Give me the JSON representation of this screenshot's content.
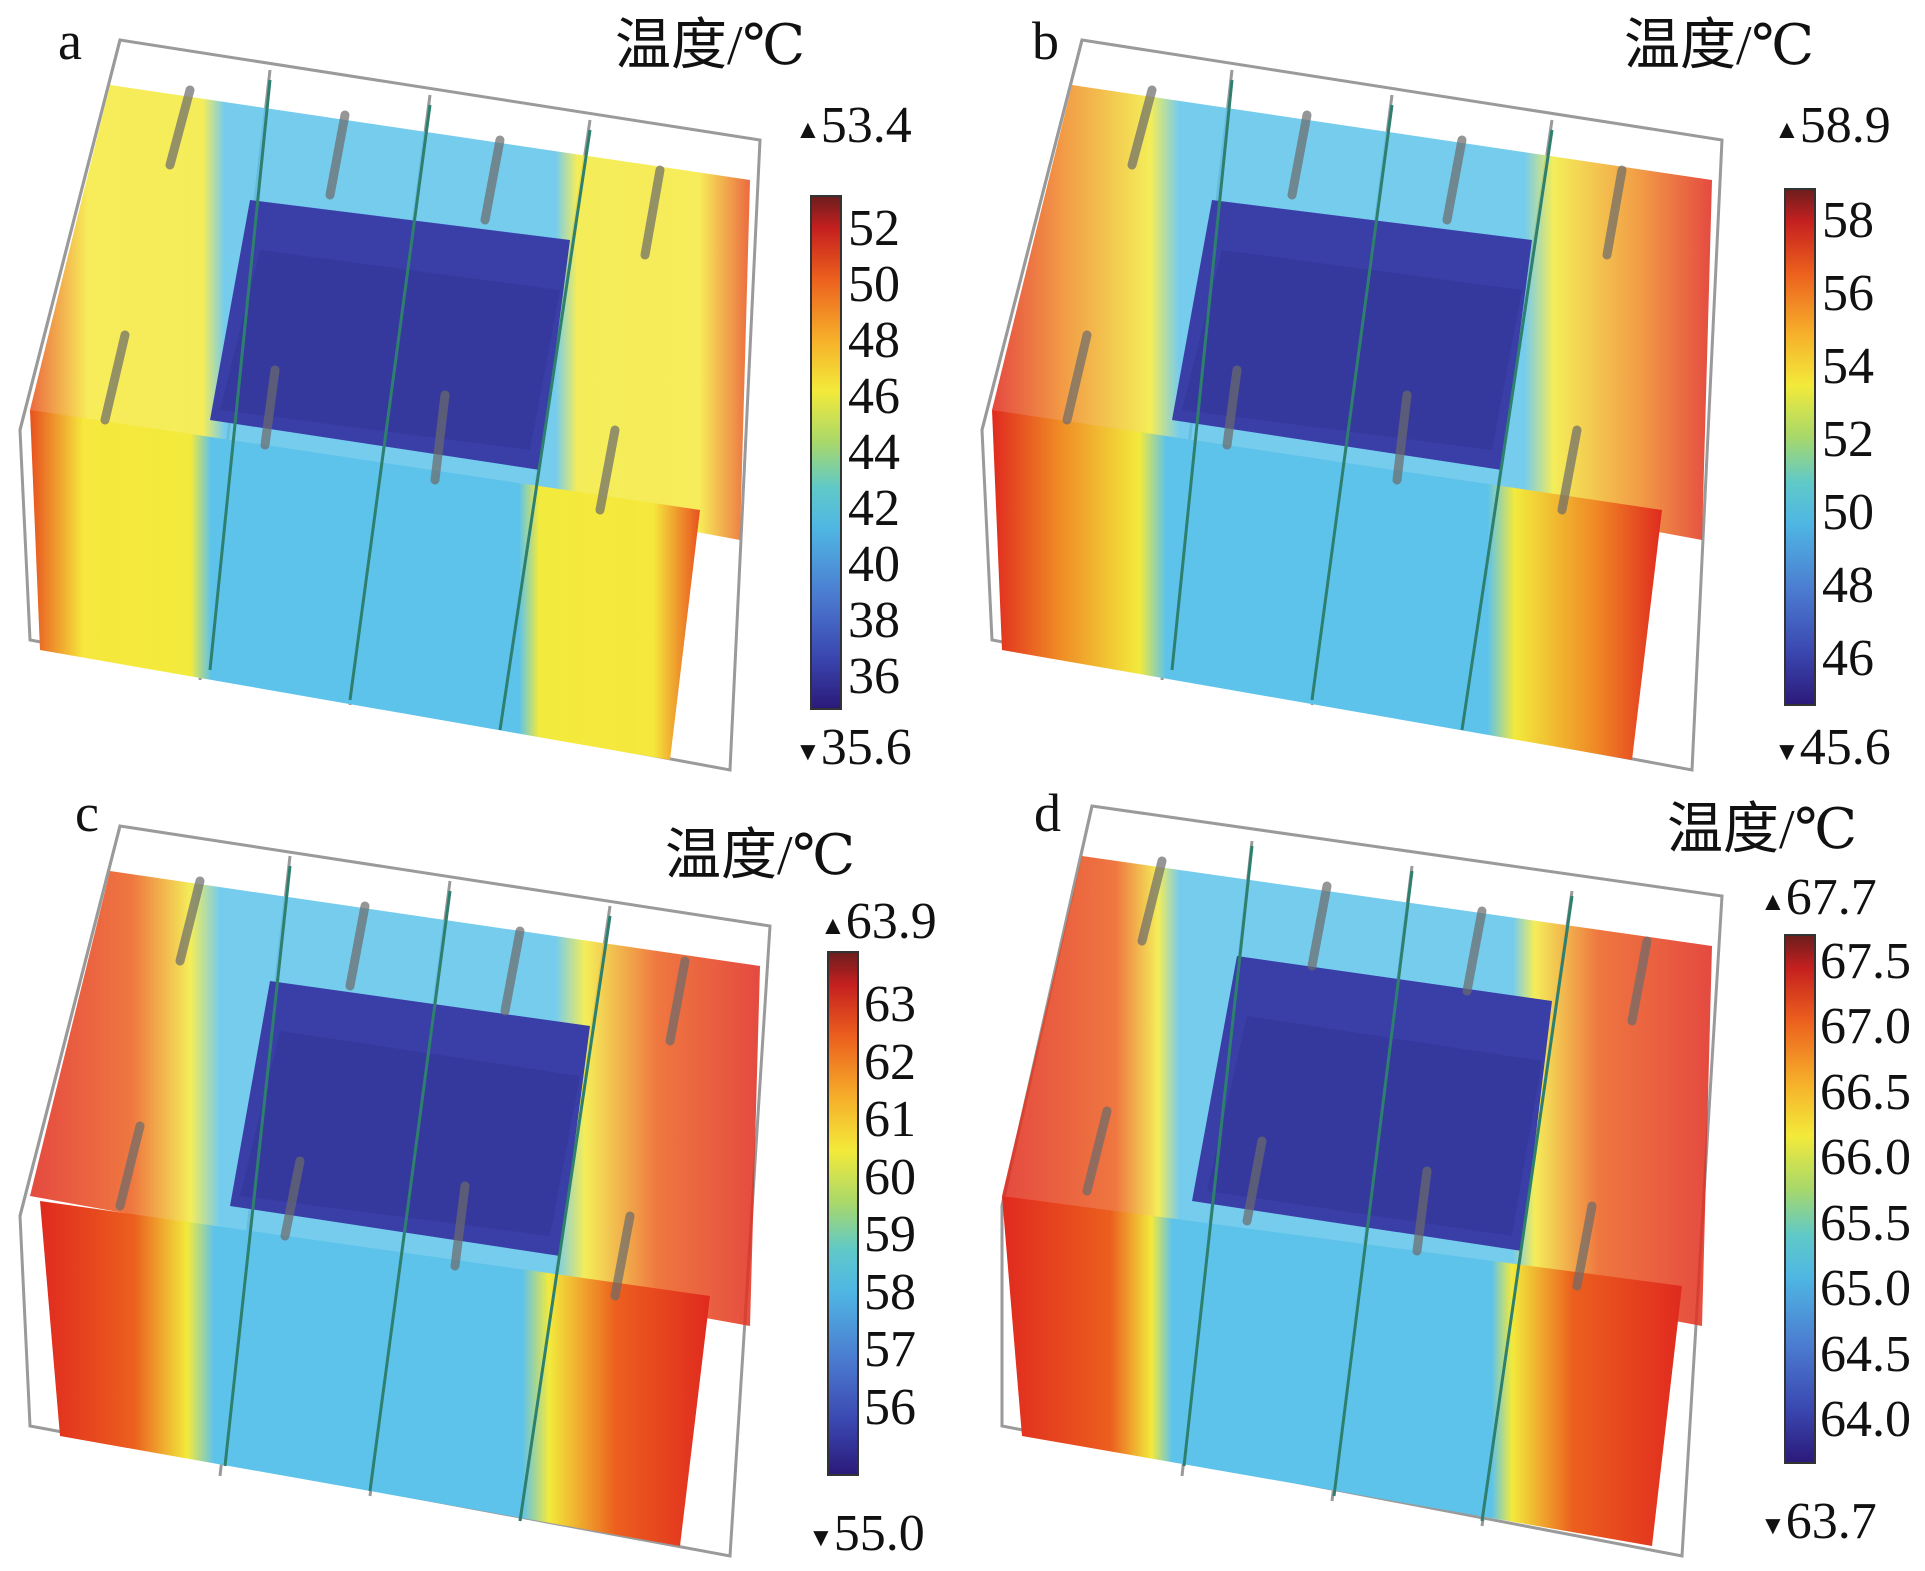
{
  "panels": [
    {
      "letter": "a",
      "unit": "温度/℃",
      "max": "53.4",
      "min": "35.6",
      "ticks": [
        "52",
        "50",
        "48",
        "46",
        "44",
        "42",
        "40",
        "38",
        "36"
      ]
    },
    {
      "letter": "b",
      "unit": "温度/℃",
      "max": "58.9",
      "min": "45.6",
      "ticks": [
        "58",
        "56",
        "54",
        "52",
        "50",
        "48",
        "46"
      ]
    },
    {
      "letter": "c",
      "unit": "温度/℃",
      "max": "63.9",
      "min": "55.0",
      "ticks": [
        "63",
        "62",
        "61",
        "60",
        "59",
        "58",
        "57",
        "56"
      ]
    },
    {
      "letter": "d",
      "unit": "温度/℃",
      "max": "67.7",
      "min": "63.7",
      "ticks": [
        "67.5",
        "67.0",
        "66.5",
        "66.0",
        "65.5",
        "65.0",
        "64.5",
        "64.0"
      ]
    }
  ],
  "symbols": {
    "max_marker": "▲",
    "min_marker": "▼"
  },
  "colors": {
    "hot": "#e02a1f",
    "warm": "#f4e53a",
    "cool": "#5ec3ea",
    "cold": "#3a3fa8",
    "frame": "#9a9a9a"
  }
}
